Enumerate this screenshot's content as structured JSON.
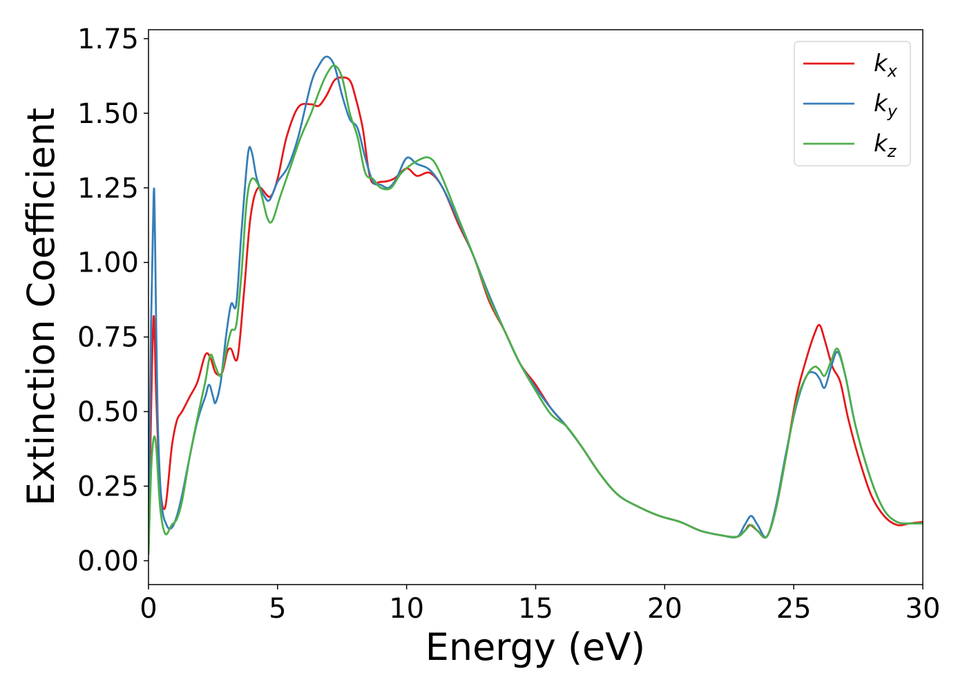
{
  "chart_data": {
    "type": "line",
    "xlabel": "Energy (eV)",
    "ylabel": "Extinction Coefficient",
    "xlim": [
      0,
      30
    ],
    "ylim": [
      -0.08,
      1.78
    ],
    "xticks": [
      0,
      5,
      10,
      15,
      20,
      25,
      30
    ],
    "xtick_labels": [
      "0",
      "5",
      "10",
      "15",
      "20",
      "25",
      "30"
    ],
    "yticks": [
      0.0,
      0.25,
      0.5,
      0.75,
      1.0,
      1.25,
      1.5,
      1.75
    ],
    "ytick_labels": [
      "0.00",
      "0.25",
      "0.50",
      "0.75",
      "1.00",
      "1.25",
      "1.50",
      "1.75"
    ],
    "grid": false,
    "legend_position": "top-right",
    "series": [
      {
        "name": "kx",
        "color": "#e41a1c",
        "x": [
          0,
          0.1,
          0.2,
          0.3,
          0.45,
          0.65,
          0.9,
          1.1,
          1.3,
          1.6,
          1.9,
          2.2,
          2.4,
          2.6,
          2.85,
          3.05,
          3.2,
          3.45,
          3.7,
          3.95,
          4.25,
          4.7,
          5.0,
          5.35,
          5.8,
          6.3,
          6.6,
          6.9,
          7.2,
          7.5,
          7.8,
          8.0,
          8.3,
          8.6,
          9.0,
          9.5,
          10.0,
          10.4,
          10.9,
          11.4,
          12.0,
          12.6,
          13.2,
          13.8,
          14.4,
          15.0,
          15.6,
          16.2,
          16.8,
          17.5,
          18.2,
          19.0,
          19.8,
          20.6,
          21.4,
          22.2,
          22.8,
          23.1,
          23.3,
          23.6,
          23.95,
          24.3,
          24.7,
          25.1,
          25.5,
          25.8,
          26.0,
          26.2,
          26.5,
          26.8,
          27.1,
          27.5,
          28.0,
          28.5,
          29.0,
          29.5,
          30.0
        ],
        "values": [
          0.02,
          0.5,
          0.82,
          0.55,
          0.25,
          0.18,
          0.38,
          0.47,
          0.5,
          0.55,
          0.6,
          0.69,
          0.68,
          0.63,
          0.63,
          0.7,
          0.71,
          0.68,
          0.9,
          1.15,
          1.25,
          1.22,
          1.28,
          1.42,
          1.52,
          1.53,
          1.525,
          1.56,
          1.61,
          1.62,
          1.61,
          1.56,
          1.45,
          1.28,
          1.27,
          1.28,
          1.315,
          1.29,
          1.3,
          1.25,
          1.13,
          1.02,
          0.87,
          0.77,
          0.66,
          0.59,
          0.51,
          0.45,
          0.38,
          0.29,
          0.22,
          0.18,
          0.15,
          0.13,
          0.1,
          0.085,
          0.08,
          0.1,
          0.12,
          0.1,
          0.08,
          0.17,
          0.35,
          0.55,
          0.68,
          0.76,
          0.79,
          0.74,
          0.65,
          0.6,
          0.48,
          0.35,
          0.22,
          0.15,
          0.12,
          0.125,
          0.13
        ]
      },
      {
        "name": "ky",
        "color": "#377eb8",
        "x": [
          0,
          0.1,
          0.2,
          0.25,
          0.35,
          0.5,
          0.7,
          0.9,
          1.1,
          1.3,
          1.6,
          1.9,
          2.2,
          2.35,
          2.5,
          2.6,
          2.8,
          3.0,
          3.2,
          3.4,
          3.6,
          3.85,
          4.0,
          4.2,
          4.5,
          4.7,
          5.0,
          5.4,
          5.8,
          6.3,
          6.6,
          6.9,
          7.2,
          7.5,
          7.8,
          8.1,
          8.4,
          8.7,
          9.0,
          9.3,
          9.6,
          10.0,
          10.4,
          10.9,
          11.4,
          12.0,
          12.6,
          13.2,
          13.8,
          14.4,
          15.0,
          15.6,
          16.2,
          16.8,
          17.5,
          18.2,
          19.0,
          19.8,
          20.6,
          21.4,
          22.2,
          22.8,
          23.1,
          23.35,
          23.6,
          23.95,
          24.3,
          24.7,
          25.1,
          25.5,
          25.8,
          26.0,
          26.2,
          26.45,
          26.7,
          27.0,
          27.4,
          28.0,
          28.5,
          29.0,
          29.5,
          30.0
        ],
        "values": [
          0.05,
          0.8,
          1.23,
          1.1,
          0.5,
          0.2,
          0.12,
          0.11,
          0.15,
          0.22,
          0.35,
          0.47,
          0.55,
          0.59,
          0.55,
          0.53,
          0.6,
          0.75,
          0.86,
          0.86,
          1.1,
          1.36,
          1.37,
          1.28,
          1.22,
          1.21,
          1.27,
          1.32,
          1.42,
          1.6,
          1.66,
          1.69,
          1.66,
          1.56,
          1.48,
          1.45,
          1.35,
          1.27,
          1.26,
          1.25,
          1.28,
          1.35,
          1.33,
          1.31,
          1.25,
          1.14,
          1.02,
          0.89,
          0.77,
          0.66,
          0.58,
          0.51,
          0.45,
          0.38,
          0.29,
          0.22,
          0.18,
          0.15,
          0.13,
          0.1,
          0.085,
          0.08,
          0.12,
          0.15,
          0.12,
          0.08,
          0.18,
          0.36,
          0.52,
          0.62,
          0.63,
          0.61,
          0.58,
          0.65,
          0.7,
          0.62,
          0.45,
          0.27,
          0.17,
          0.13,
          0.125,
          0.125
        ]
      },
      {
        "name": "kz",
        "color": "#4daf4a",
        "x": [
          0,
          0.1,
          0.2,
          0.3,
          0.45,
          0.65,
          0.9,
          1.1,
          1.3,
          1.6,
          1.9,
          2.2,
          2.4,
          2.6,
          2.8,
          3.0,
          3.2,
          3.4,
          3.6,
          3.8,
          4.0,
          4.3,
          4.6,
          4.8,
          5.1,
          5.5,
          5.9,
          6.3,
          6.6,
          6.9,
          7.2,
          7.5,
          7.8,
          8.1,
          8.4,
          8.7,
          9.0,
          9.4,
          9.8,
          10.4,
          10.9,
          11.3,
          12.0,
          12.6,
          13.2,
          13.8,
          14.4,
          15.0,
          15.6,
          16.2,
          16.8,
          17.5,
          18.2,
          19.0,
          19.8,
          20.6,
          21.4,
          22.2,
          22.8,
          23.1,
          23.35,
          23.6,
          23.95,
          24.3,
          24.7,
          25.1,
          25.5,
          25.8,
          26.0,
          26.2,
          26.45,
          26.7,
          27.0,
          27.4,
          28.0,
          28.5,
          29.0,
          29.5,
          30.0
        ],
        "values": [
          0.02,
          0.3,
          0.41,
          0.38,
          0.18,
          0.09,
          0.12,
          0.14,
          0.2,
          0.35,
          0.48,
          0.6,
          0.69,
          0.65,
          0.62,
          0.7,
          0.77,
          0.79,
          0.96,
          1.2,
          1.28,
          1.25,
          1.15,
          1.14,
          1.22,
          1.32,
          1.42,
          1.5,
          1.57,
          1.63,
          1.66,
          1.62,
          1.5,
          1.42,
          1.3,
          1.28,
          1.25,
          1.25,
          1.3,
          1.34,
          1.35,
          1.3,
          1.15,
          1.02,
          0.88,
          0.77,
          0.66,
          0.57,
          0.49,
          0.45,
          0.38,
          0.29,
          0.22,
          0.18,
          0.15,
          0.13,
          0.1,
          0.085,
          0.08,
          0.1,
          0.12,
          0.1,
          0.08,
          0.17,
          0.35,
          0.53,
          0.62,
          0.65,
          0.64,
          0.62,
          0.67,
          0.71,
          0.62,
          0.45,
          0.27,
          0.17,
          0.13,
          0.125,
          0.125
        ]
      }
    ]
  },
  "legend": [
    {
      "base": "k",
      "sub": "x",
      "color": "#e41a1c"
    },
    {
      "base": "k",
      "sub": "y",
      "color": "#377eb8"
    },
    {
      "base": "k",
      "sub": "z",
      "color": "#4daf4a"
    }
  ]
}
